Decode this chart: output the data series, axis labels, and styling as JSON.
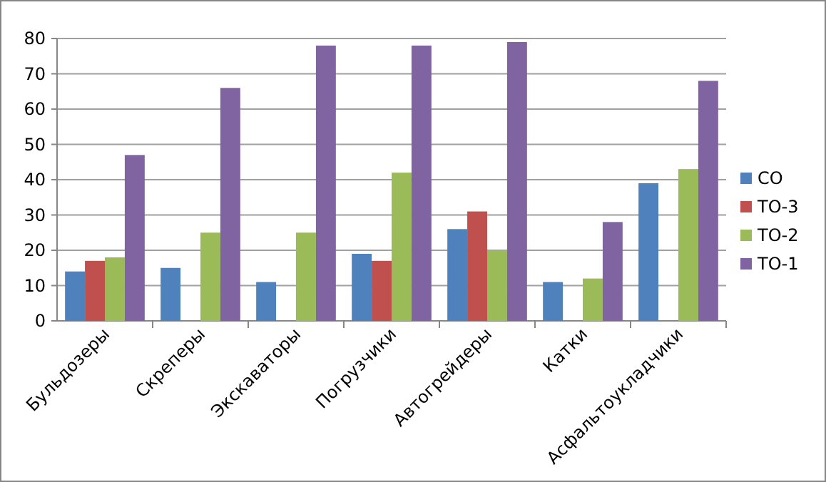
{
  "chart_data": {
    "type": "bar",
    "categories": [
      "Бульдозеры",
      "Скреперы",
      "Экскаваторы",
      "Погрузчики",
      "Автогрейдеры",
      "Катки",
      "Асфальтоукладчики"
    ],
    "series": [
      {
        "name": "СО",
        "color": "#4f81bd",
        "values": [
          14,
          15,
          11,
          19,
          26,
          11,
          39
        ]
      },
      {
        "name": "ТО-3",
        "color": "#c0504d",
        "values": [
          17,
          null,
          null,
          17,
          31,
          null,
          null
        ]
      },
      {
        "name": "ТО-2",
        "color": "#9bbb59",
        "values": [
          18,
          25,
          25,
          42,
          20,
          12,
          43
        ]
      },
      {
        "name": "ТО-1",
        "color": "#8064a2",
        "values": [
          47,
          66,
          78,
          78,
          79,
          28,
          68
        ]
      }
    ],
    "ylim": [
      0,
      80
    ],
    "yticks": [
      0,
      10,
      20,
      30,
      40,
      50,
      60,
      70,
      80
    ],
    "grid": "y",
    "legend": "right"
  }
}
